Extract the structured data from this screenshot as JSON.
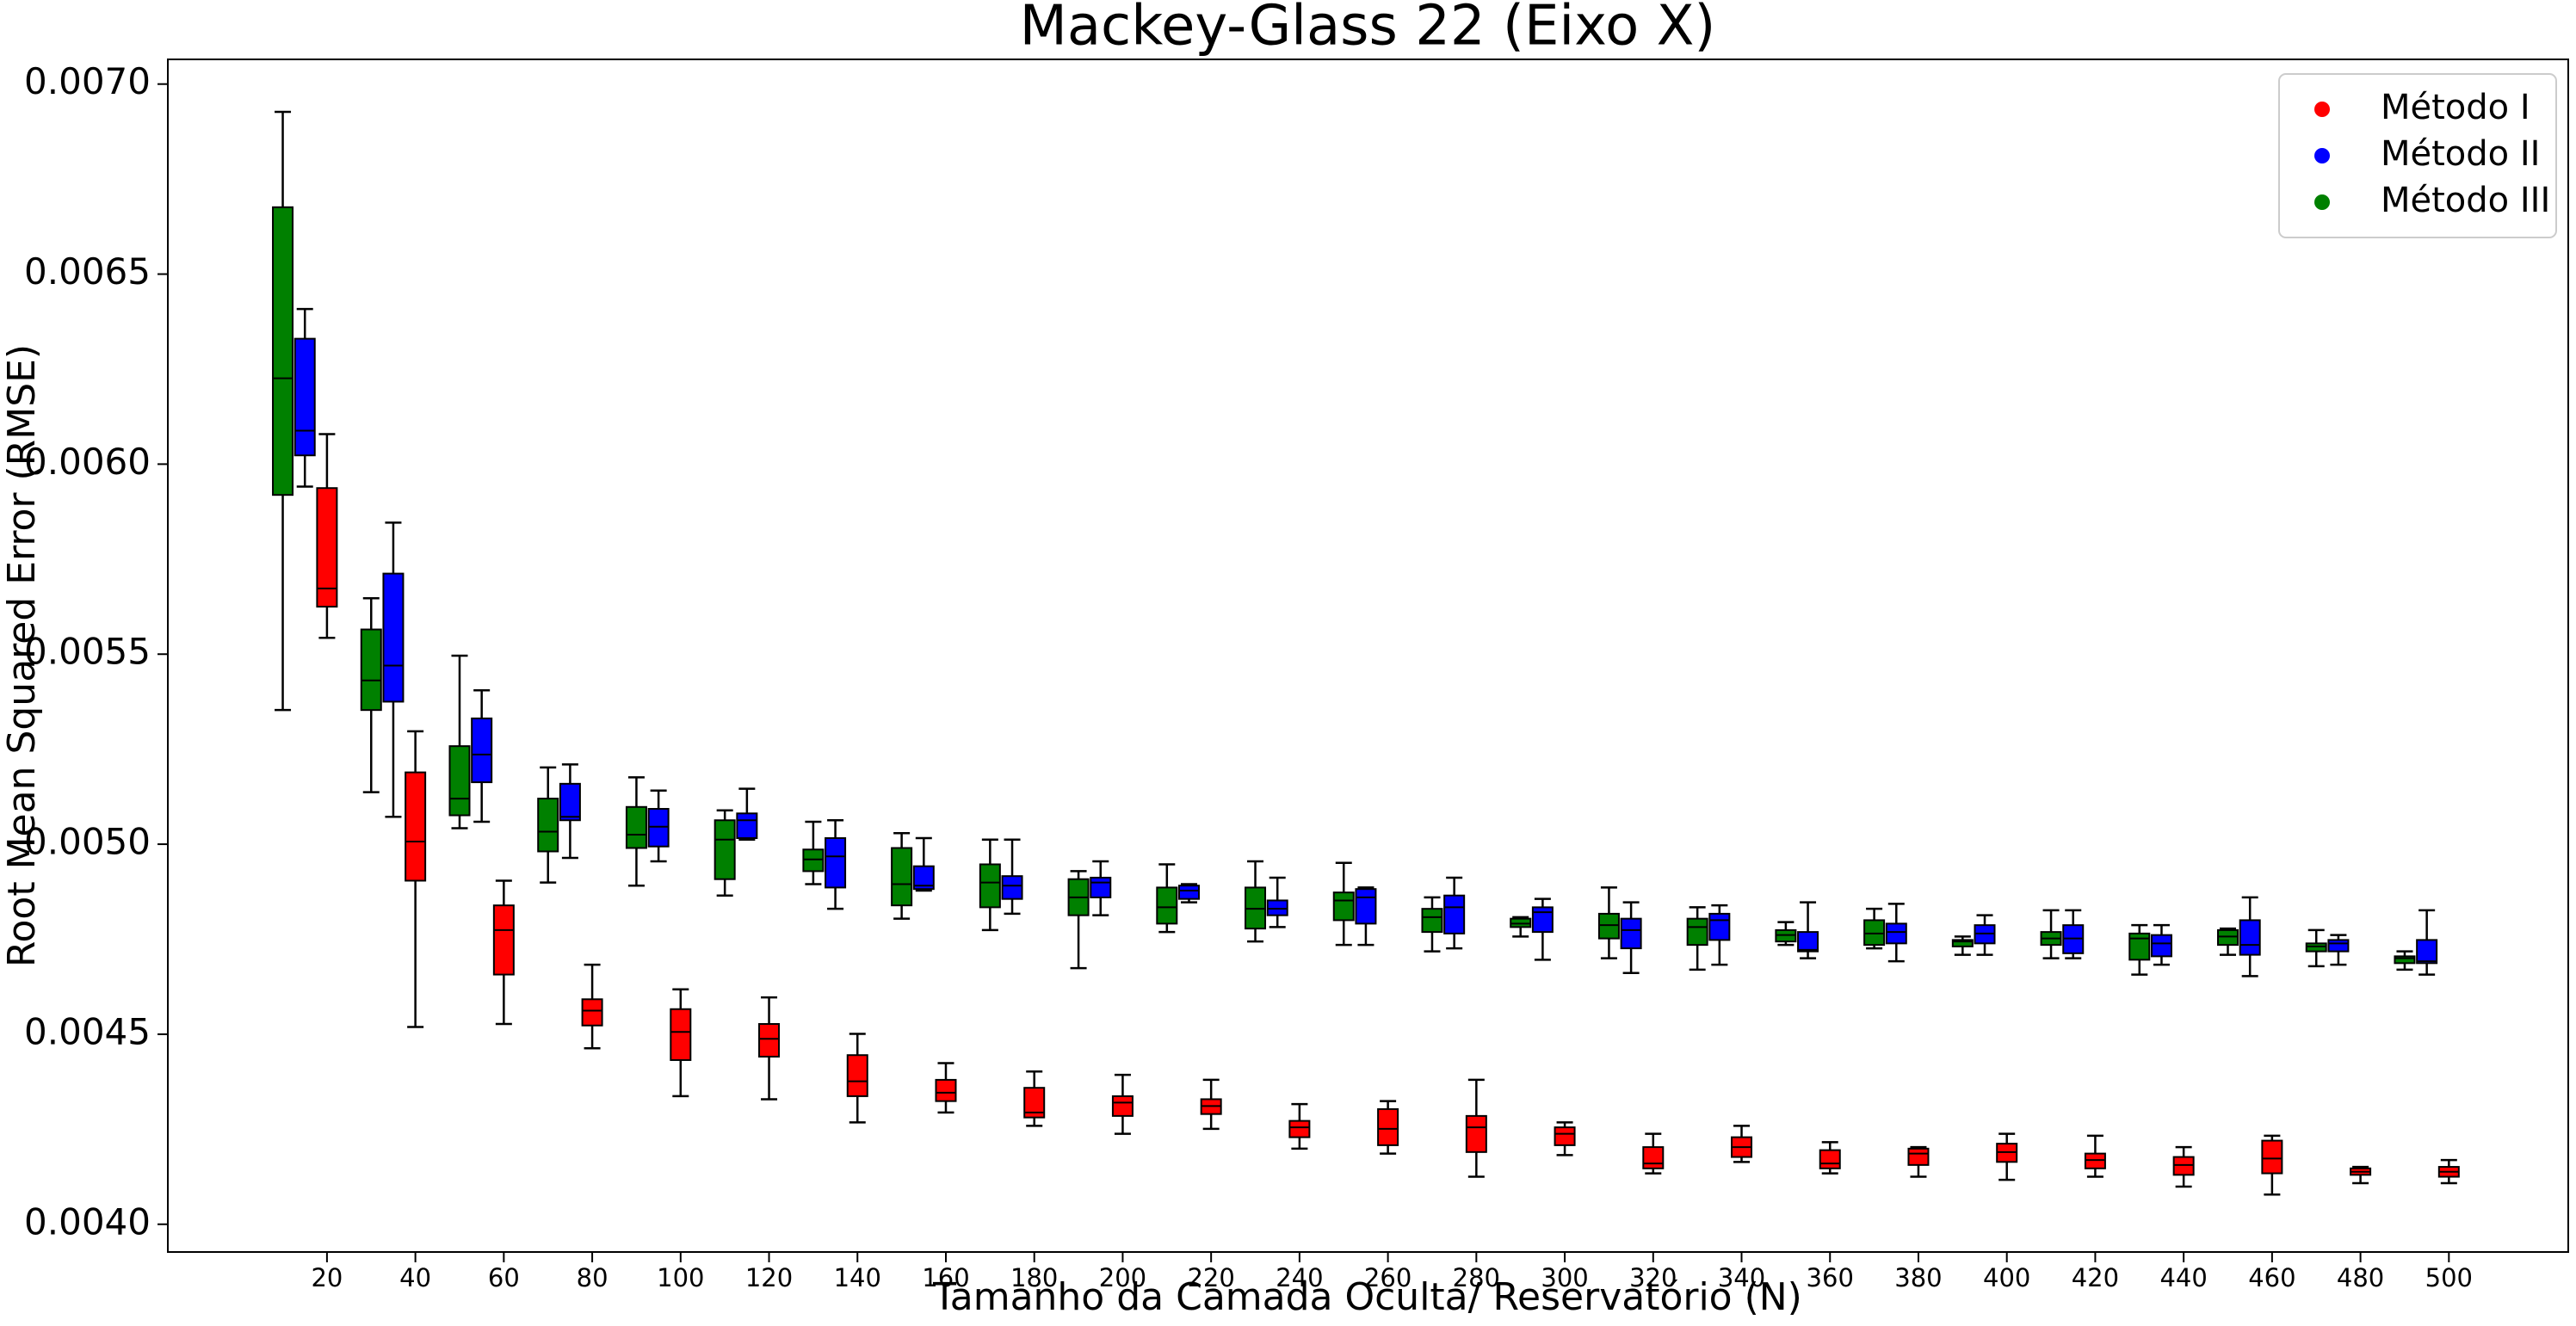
{
  "chart_data": {
    "type": "box",
    "title": "Mackey-Glass 22 (Eixo X)",
    "x_label": "Tamanho da Camada Oculta/ Reservatório (N)",
    "y_label": "Root Mean Squared Error (RMSE)",
    "x": [
      20,
      40,
      60,
      80,
      100,
      120,
      140,
      160,
      180,
      200,
      220,
      240,
      260,
      280,
      300,
      320,
      340,
      360,
      380,
      400,
      420,
      440,
      460,
      480,
      500
    ],
    "xlim": [
      -16,
      527
    ],
    "xticks": [
      20,
      40,
      60,
      80,
      100,
      120,
      140,
      160,
      180,
      200,
      220,
      240,
      260,
      280,
      300,
      320,
      340,
      360,
      380,
      400,
      420,
      440,
      460,
      480,
      500
    ],
    "ylim": [
      0.003927,
      0.007065
    ],
    "yticks": [
      {
        "value": 0.004,
        "label": "0.0040"
      },
      0.0045,
      {
        "value": 0.005,
        "label": "0.0050"
      },
      0.0055,
      {
        "value": 0.006,
        "label": "0.0060"
      },
      0.0065,
      {
        "value": 0.007,
        "label": "0.0070"
      }
    ],
    "legend": "upper right",
    "series": [
      {
        "name": "Método I",
        "color": "#ff0000",
        "low": [
          0.005543,
          0.004519,
          0.004527,
          0.004463,
          0.004337,
          0.004329,
          0.004268,
          0.004294,
          0.004259,
          0.004238,
          0.004251,
          0.004199,
          0.004186,
          0.004125,
          0.004182,
          0.004134,
          0.004164,
          0.004134,
          0.004125,
          0.004117,
          0.004125,
          0.004099,
          0.004078,
          0.004108,
          0.004108
        ],
        "q1": [
          0.005625,
          0.004904,
          0.004657,
          0.004523,
          0.004432,
          0.004441,
          0.004337,
          0.004324,
          0.004281,
          0.004285,
          0.00429,
          0.004229,
          0.004208,
          0.00419,
          0.004208,
          0.004147,
          0.004177,
          0.004147,
          0.004156,
          0.004164,
          0.004147,
          0.00413,
          0.004134,
          0.00413,
          0.004125
        ],
        "median": [
          0.005673,
          0.005007,
          0.004774,
          0.004562,
          0.004506,
          0.004488,
          0.004376,
          0.004346,
          0.004294,
          0.00432,
          0.004311,
          0.004255,
          0.004251,
          0.004255,
          0.004238,
          0.00416,
          0.004203,
          0.00416,
          0.004186,
          0.00419,
          0.004169,
          0.004156,
          0.004173,
          0.004138,
          0.004138
        ],
        "q3": [
          0.005937,
          0.005189,
          0.004839,
          0.004592,
          0.004566,
          0.004527,
          0.004445,
          0.00438,
          0.004359,
          0.004337,
          0.004329,
          0.004272,
          0.004303,
          0.004285,
          0.004255,
          0.004203,
          0.004229,
          0.004195,
          0.004199,
          0.004212,
          0.004186,
          0.004177,
          0.00422,
          0.004147,
          0.004151
        ],
        "high": [
          0.006079,
          0.005297,
          0.004904,
          0.004683,
          0.004618,
          0.004597,
          0.004501,
          0.004424,
          0.004402,
          0.004393,
          0.00438,
          0.004316,
          0.004324,
          0.00438,
          0.004268,
          0.004238,
          0.004259,
          0.004216,
          0.004203,
          0.004238,
          0.004233,
          0.004203,
          0.004233,
          0.004151,
          0.004169
        ]
      },
      {
        "name": "Método II",
        "color": "#0000ff",
        "low": [
          0.005941,
          0.005072,
          0.005059,
          0.004964,
          0.004955,
          0.005012,
          0.00483,
          0.004878,
          0.004817,
          0.004813,
          0.004847,
          0.004782,
          0.004735,
          0.004726,
          0.004696,
          0.004661,
          0.004683,
          0.0047,
          0.004692,
          0.004709,
          0.0047,
          0.004683,
          0.004653,
          0.004683,
          0.004657
        ],
        "q1": [
          0.006023,
          0.005375,
          0.005163,
          0.005063,
          0.004994,
          0.005016,
          0.004886,
          0.004882,
          0.004856,
          0.00486,
          0.004856,
          0.004813,
          0.004791,
          0.004765,
          0.004769,
          0.004726,
          0.004748,
          0.004718,
          0.004739,
          0.004739,
          0.004713,
          0.004705,
          0.004709,
          0.004718,
          0.004687
        ],
        "median": [
          0.006088,
          0.00547,
          0.005236,
          0.005072,
          0.005046,
          0.005063,
          0.004968,
          0.004891,
          0.004891,
          0.004899,
          0.004878,
          0.00483,
          0.00486,
          0.004834,
          0.004821,
          0.004774,
          0.0048,
          0.004722,
          0.004769,
          0.004765,
          0.004752,
          0.004739,
          0.004735,
          0.004739,
          0.004692
        ],
        "q3": [
          0.00633,
          0.005712,
          0.005331,
          0.005159,
          0.005093,
          0.005081,
          0.005016,
          0.004942,
          0.004916,
          0.004912,
          0.004891,
          0.004852,
          0.004882,
          0.004865,
          0.004834,
          0.004804,
          0.004817,
          0.004769,
          0.004791,
          0.004787,
          0.004787,
          0.004761,
          0.0048,
          0.004748,
          0.004748
        ],
        "high": [
          0.006408,
          0.005846,
          0.005405,
          0.00521,
          0.005141,
          0.005146,
          0.005063,
          0.005016,
          0.005012,
          0.004955,
          0.004895,
          0.004912,
          0.004886,
          0.004912,
          0.004856,
          0.004847,
          0.004839,
          0.004847,
          0.004843,
          0.004813,
          0.004826,
          0.004787,
          0.00486,
          0.004761,
          0.004826
        ]
      },
      {
        "name": "Método III",
        "color": "#008000",
        "low": [
          0.005353,
          0.005137,
          0.005042,
          0.004899,
          0.004891,
          0.004865,
          0.004895,
          0.004804,
          0.004774,
          0.004674,
          0.004769,
          0.004744,
          0.004735,
          0.004718,
          0.004757,
          0.0047,
          0.00467,
          0.004735,
          0.004726,
          0.004709,
          0.0047,
          0.004657,
          0.004709,
          0.004679,
          0.00467
        ],
        "q1": [
          0.005919,
          0.005353,
          0.005076,
          0.004981,
          0.00499,
          0.004908,
          0.004929,
          0.004839,
          0.004834,
          0.004813,
          0.004791,
          0.004778,
          0.0048,
          0.004769,
          0.004782,
          0.004752,
          0.004735,
          0.004744,
          0.004735,
          0.004731,
          0.004735,
          0.004696,
          0.004735,
          0.004718,
          0.004687
        ],
        "median": [
          0.006226,
          0.005431,
          0.00512,
          0.005033,
          0.005025,
          0.005012,
          0.00496,
          0.004895,
          0.004899,
          0.00486,
          0.004834,
          0.00483,
          0.004852,
          0.004808,
          0.004791,
          0.004787,
          0.004782,
          0.004761,
          0.004765,
          0.004744,
          0.004752,
          0.004752,
          0.004757,
          0.004731,
          0.0047
        ],
        "q3": [
          0.006676,
          0.005565,
          0.005258,
          0.00512,
          0.005098,
          0.005063,
          0.004986,
          0.00499,
          0.004947,
          0.004908,
          0.004886,
          0.004886,
          0.004873,
          0.00483,
          0.004804,
          0.004817,
          0.004804,
          0.004774,
          0.0048,
          0.004748,
          0.004769,
          0.004765,
          0.004774,
          0.004739,
          0.004705
        ],
        "high": [
          0.006927,
          0.005647,
          0.005496,
          0.005202,
          0.005176,
          0.005089,
          0.005059,
          0.005029,
          0.005012,
          0.004929,
          0.004947,
          0.004955,
          0.004951,
          0.00486,
          0.004808,
          0.004886,
          0.004834,
          0.004795,
          0.00483,
          0.004757,
          0.004826,
          0.004787,
          0.004778,
          0.004774,
          0.004718
        ]
      }
    ]
  }
}
